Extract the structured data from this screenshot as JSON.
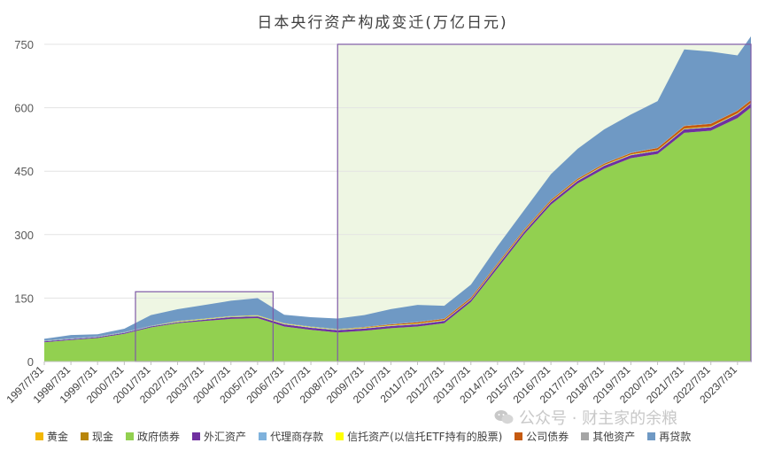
{
  "chart_data": {
    "type": "area",
    "stacked": true,
    "title": "日本央行资产构成变迁(万亿日元)",
    "ylim": [
      0,
      750
    ],
    "yticks": [
      "750",
      "600",
      "450",
      "300",
      "150",
      "0"
    ],
    "ytick_values": [
      750,
      600,
      450,
      300,
      150,
      0
    ],
    "grid": true,
    "legend_position": "bottom",
    "x": [
      "1997/7/31",
      "1998/7/31",
      "1999/7/31",
      "2000/7/31",
      "2001/7/31",
      "2002/7/31",
      "2003/7/31",
      "2004/7/31",
      "2005/7/31",
      "2006/7/31",
      "2007/7/31",
      "2008/7/31",
      "2009/7/31",
      "2010/7/31",
      "2011/7/31",
      "2012/7/31",
      "2013/7/31",
      "2014/7/31",
      "2015/7/31",
      "2016/7/31",
      "2017/7/31",
      "2018/7/31",
      "2019/7/31",
      "2020/7/31",
      "2021/7/31",
      "2022/7/31",
      "2023/7/31",
      "2024/1/31"
    ],
    "xtick_labels": [
      "1997/7/31",
      "1998/7/31",
      "1999/7/31",
      "2000/7/31",
      "2001/7/31",
      "2002/7/31",
      "2003/7/31",
      "2004/7/31",
      "2005/7/31",
      "2006/7/31",
      "2007/7/31",
      "2008/7/31",
      "2009/7/31",
      "2010/7/31",
      "2011/7/31",
      "2012/7/31",
      "2013/7/31",
      "2014/7/31",
      "2015/7/31",
      "2016/7/31",
      "2017/7/31",
      "2018/7/31",
      "2019/7/31",
      "2020/7/31",
      "2021/7/31",
      "2022/7/31",
      "2023/7/31"
    ],
    "series": [
      {
        "name": "黄金",
        "color": "#f2b705",
        "values": [
          0.4,
          0.4,
          0.4,
          0.4,
          0.4,
          0.4,
          0.4,
          0.4,
          0.4,
          0.4,
          0.4,
          0.4,
          0.4,
          0.4,
          0.4,
          0.4,
          0.4,
          0.4,
          0.4,
          0.4,
          0.4,
          0.4,
          0.4,
          0.4,
          0.4,
          0.4,
          0.4,
          0.4
        ]
      },
      {
        "name": "现金",
        "color": "#b8860b",
        "values": [
          0.2,
          0.2,
          0.2,
          0.2,
          0.3,
          0.3,
          0.3,
          0.3,
          0.3,
          0.3,
          0.3,
          0.3,
          0.4,
          0.4,
          0.4,
          0.4,
          0.4,
          0.4,
          0.4,
          0.4,
          0.4,
          0.4,
          0.4,
          0.4,
          0.4,
          0.4,
          0.4,
          0.4
        ]
      },
      {
        "name": "政府债券",
        "color": "#92d050",
        "values": [
          45,
          50,
          55,
          65,
          80,
          90,
          95,
          100,
          102,
          82,
          74,
          68,
          72,
          78,
          82,
          90,
          140,
          220,
          300,
          370,
          420,
          455,
          480,
          490,
          540,
          545,
          575,
          600
        ]
      },
      {
        "name": "外汇资产",
        "color": "#7030a0",
        "values": [
          2,
          2,
          2,
          2,
          2,
          2,
          3,
          4,
          4,
          5,
          5,
          5,
          5,
          5,
          5,
          5,
          5,
          6,
          6,
          6,
          6,
          7,
          7,
          7,
          8,
          8,
          9,
          9
        ]
      },
      {
        "name": "代理商存款",
        "color": "#7fb2dc",
        "values": [
          1,
          1,
          1,
          1,
          1,
          1,
          1,
          1,
          1,
          1,
          1,
          1,
          1,
          1,
          1,
          1,
          1,
          1,
          1,
          1,
          1,
          1,
          1,
          1,
          1,
          1,
          1,
          1
        ]
      },
      {
        "name": "信托资产(以信托ETF持有的股票)",
        "color": "#ffff00",
        "values": [
          0,
          0,
          0,
          0,
          0,
          1,
          1,
          1,
          1,
          1,
          1,
          1,
          1,
          1,
          1,
          1,
          1,
          1,
          1,
          1,
          1,
          1,
          1,
          1,
          1,
          1,
          1,
          1
        ]
      },
      {
        "name": "公司债券",
        "color": "#c55a11",
        "values": [
          0,
          0,
          0,
          0,
          0,
          0,
          0,
          0,
          0,
          0,
          0,
          0,
          1,
          2,
          3,
          3,
          3,
          3,
          3,
          3,
          3,
          3,
          3,
          5,
          6,
          6,
          6,
          6
        ]
      },
      {
        "name": "其他资产",
        "color": "#a5a5a5",
        "values": [
          1,
          1,
          1,
          1,
          1,
          1,
          1,
          1,
          1,
          1,
          1,
          1,
          1,
          1,
          1,
          1,
          1,
          1,
          1,
          1,
          1,
          1,
          1,
          1,
          1,
          1,
          1,
          1
        ]
      },
      {
        "name": "再贷款",
        "color": "#6f99c4",
        "values": [
          4,
          8,
          5,
          8,
          25,
          28,
          32,
          36,
          40,
          20,
          22,
          25,
          28,
          35,
          40,
          30,
          30,
          40,
          45,
          60,
          70,
          80,
          90,
          110,
          180,
          170,
          130,
          150
        ]
      }
    ],
    "highlight_boxes": [
      {
        "from": "2000/12/31",
        "to": "2006/2/28",
        "ymax": 165
      },
      {
        "from": "2008/7/31",
        "to": "2024/1/31",
        "ymax": 750
      }
    ]
  },
  "watermark": {
    "text": "公众号 · 财主家的余粮",
    "icon": "wechat-icon"
  }
}
